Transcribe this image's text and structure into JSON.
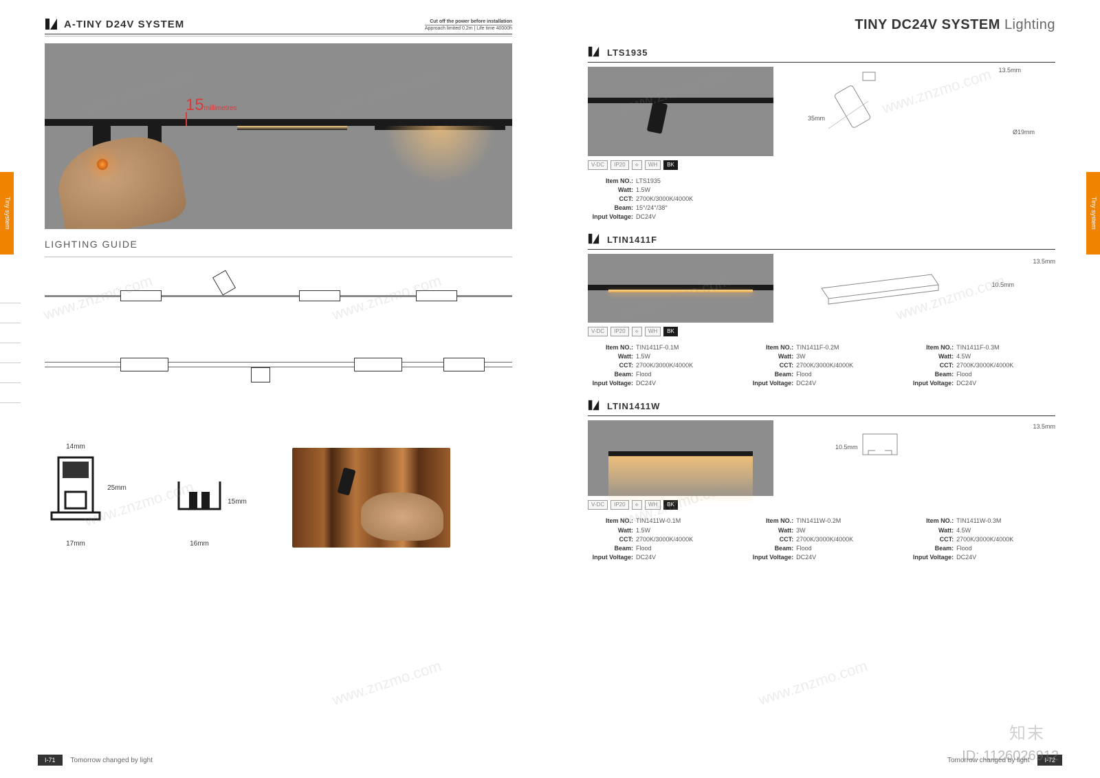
{
  "header": {
    "title_bold": "TINY DC24V SYSTEM",
    "title_light": "Lighting"
  },
  "tab": {
    "label": "Tiny system"
  },
  "left": {
    "section_title": "A-TINY D24V SYSTEM",
    "meta1": "Cut off the power before installation",
    "meta2": "Approach limited 0.2m | Life time 40000h",
    "hero_dim_value": "15",
    "hero_dim_unit": "millimetres",
    "subheading": "LIGHTING GUIDE",
    "profile1": {
      "w": "14mm",
      "h": "25mm",
      "base": "17mm"
    },
    "profile2": {
      "w": "16mm",
      "h": "15mm"
    },
    "footer_page": "I-71",
    "footer_text": "Tomorrow changed by light"
  },
  "badges": {
    "vdc": "V-DC",
    "ip": "IP20",
    "wh": "WH",
    "bk": "BK"
  },
  "spec_labels": {
    "item": "Item NO.:",
    "watt": "Watt:",
    "cct": "CCT:",
    "beam": "Beam:",
    "voltage": "Input Voltage:"
  },
  "products": {
    "p1": {
      "title": "LTS1935",
      "dim1": "13.5mm",
      "dim2": "35mm",
      "dim3": "Ø19mm",
      "specs": [
        {
          "item": "LTS1935",
          "watt": "1.5W",
          "cct": "2700K/3000K/4000K",
          "beam": "15°/24°/38°",
          "voltage": "DC24V"
        }
      ]
    },
    "p2": {
      "title": "LTIN1411F",
      "dim1": "13.5mm",
      "dim2": "10.5mm",
      "specs": [
        {
          "item": "TIN1411F-0.1M",
          "watt": "1.5W",
          "cct": "2700K/3000K/4000K",
          "beam": "Flood",
          "voltage": "DC24V"
        },
        {
          "item": "TIN1411F-0.2M",
          "watt": "3W",
          "cct": "2700K/3000K/4000K",
          "beam": "Flood",
          "voltage": "DC24V"
        },
        {
          "item": "TIN1411F-0.3M",
          "watt": "4.5W",
          "cct": "2700K/3000K/4000K",
          "beam": "Flood",
          "voltage": "DC24V"
        }
      ]
    },
    "p3": {
      "title": "LTIN1411W",
      "dim1": "13.5mm",
      "dim2": "10.5mm",
      "specs": [
        {
          "item": "TIN1411W-0.1M",
          "watt": "1.5W",
          "cct": "2700K/3000K/4000K",
          "beam": "Flood",
          "voltage": "DC24V"
        },
        {
          "item": "TIN1411W-0.2M",
          "watt": "3W",
          "cct": "2700K/3000K/4000K",
          "beam": "Flood",
          "voltage": "DC24V"
        },
        {
          "item": "TIN1411W-0.3M",
          "watt": "4.5W",
          "cct": "2700K/3000K/4000K",
          "beam": "Flood",
          "voltage": "DC24V"
        }
      ]
    }
  },
  "right_footer": {
    "text": "Tomorrow changed by light",
    "page": "I-72"
  },
  "watermark": {
    "url": "www.znzmo.com",
    "id": "ID: 1126026912",
    "logo": "知末"
  }
}
